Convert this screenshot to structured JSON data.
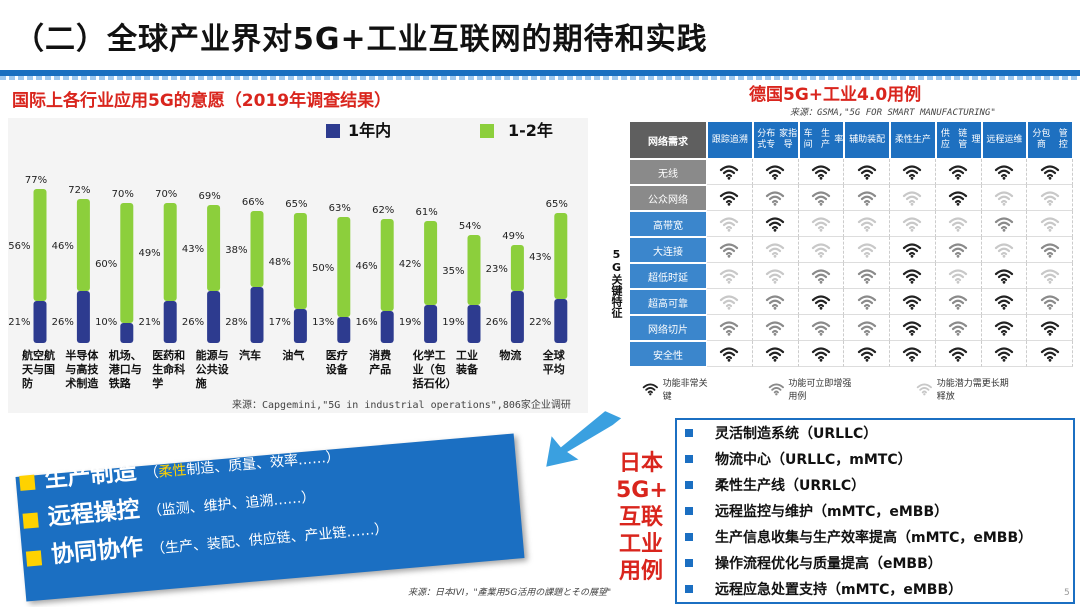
{
  "title": "（二）全球产业界对5G+工业互联网的期待和实践",
  "chart": {
    "title": "国际上各行业应用5G的意愿（2019年调查结果）",
    "legend": [
      {
        "label": "1年内",
        "color": "#2d3b8f"
      },
      {
        "label": "1-2年",
        "color": "#8ccf3c"
      }
    ],
    "source": "来源：Capgemini,\"5G in industrial operations\",806家企业调研"
  },
  "chart_data": {
    "type": "bar",
    "stacked": true,
    "categories": [
      "航空航天与国防",
      "半导体与高技术制造",
      "机场、港口与铁路",
      "医药和生命科学",
      "能源与公共设施",
      "汽车",
      "油气",
      "医疗设备",
      "消费产品",
      "化学工业（包括石化）",
      "工业装备",
      "物流",
      "全球平均"
    ],
    "series": [
      {
        "name": "1年内",
        "values": [
          21,
          26,
          10,
          21,
          26,
          28,
          17,
          13,
          16,
          19,
          19,
          26,
          22
        ]
      },
      {
        "name": "1-2年",
        "values": [
          56,
          46,
          60,
          49,
          43,
          38,
          48,
          50,
          46,
          42,
          35,
          23,
          43
        ]
      }
    ],
    "totals": [
      77,
      72,
      70,
      70,
      69,
      66,
      65,
      63,
      62,
      61,
      54,
      49,
      65
    ],
    "total_labels": [
      "77%",
      "72%",
      "70%",
      "70%",
      "69%",
      "66%",
      "65%",
      "63%",
      "62%",
      "61%",
      "54%",
      "49%",
      "65%"
    ],
    "series1_labels": [
      "21%",
      "26%",
      "10%",
      "21%",
      "26%",
      "28%",
      "17%",
      "13%",
      "16%",
      "19%",
      "19%",
      "26%",
      "22%"
    ],
    "series2_labels": [
      "56%",
      "46%",
      "60%",
      "49%",
      "43%",
      "38%",
      "48%",
      "50%",
      "46%",
      "42%",
      "35%",
      "23%",
      "43%"
    ],
    "category_label_lines": [
      [
        "航空航",
        "天与国",
        "防"
      ],
      [
        "半导体",
        "与高技",
        "术制造"
      ],
      [
        "机场、",
        "港口与",
        "铁路"
      ],
      [
        "医药和",
        "生命科",
        "学"
      ],
      [
        "能源与",
        "公共设",
        "施"
      ],
      [
        "汽车"
      ],
      [
        "油气"
      ],
      [
        "医疗",
        "设备"
      ],
      [
        "消费",
        "产品"
      ],
      [
        "化学工",
        "业（包",
        "括石化）"
      ],
      [
        "工业",
        "装备"
      ],
      [
        "物流"
      ],
      [
        "全球",
        "平均"
      ]
    ]
  },
  "germany": {
    "title": "德国5G+工业4.0用例",
    "source": "来源：GSMA,\"5G FOR SMART MANUFACTURING\"",
    "corner_label": "网络需求",
    "columns": [
      "跟踪追溯",
      "分布式专家指导",
      "车间生产率",
      "辅助装配",
      "柔性生产",
      "供应链管理",
      "远程运维",
      "分包商管控"
    ],
    "column_lines": [
      [
        "跟踪",
        "追溯"
      ],
      [
        "分布式专",
        "家指导"
      ],
      [
        "车间",
        "生产",
        "率"
      ],
      [
        "辅助",
        "装配"
      ],
      [
        "柔性",
        "生产"
      ],
      [
        "供应",
        "链管",
        "理"
      ],
      [
        "远程",
        "运维"
      ],
      [
        "分包商",
        "管控"
      ]
    ],
    "side_label": "5G关键特征",
    "rows": [
      {
        "label": "无线",
        "style": "gray",
        "levels": [
          2,
          2,
          2,
          2,
          2,
          2,
          2,
          2
        ]
      },
      {
        "label": "公众网络",
        "style": "gray",
        "levels": [
          2,
          1,
          1,
          1,
          0,
          2,
          0,
          0
        ]
      },
      {
        "label": "高带宽",
        "style": "blue",
        "levels": [
          0,
          2,
          0,
          0,
          0,
          0,
          1,
          0
        ]
      },
      {
        "label": "大连接",
        "style": "blue",
        "levels": [
          1,
          0,
          0,
          0,
          2,
          1,
          0,
          1
        ]
      },
      {
        "label": "超低时延",
        "style": "blue",
        "levels": [
          0,
          0,
          1,
          1,
          2,
          0,
          2,
          0
        ]
      },
      {
        "label": "超高可靠",
        "style": "blue",
        "levels": [
          0,
          1,
          2,
          1,
          2,
          1,
          2,
          1
        ]
      },
      {
        "label": "网络切片",
        "style": "blue",
        "levels": [
          1,
          1,
          1,
          1,
          2,
          1,
          2,
          2
        ]
      },
      {
        "label": "安全性",
        "style": "blue",
        "levels": [
          2,
          2,
          2,
          2,
          2,
          2,
          2,
          2
        ]
      }
    ],
    "legend": [
      {
        "label": "功能非常关键",
        "icon": "wifi-dark-icon"
      },
      {
        "label": "功能可立即增强用例",
        "icon": "wifi-mid-icon"
      },
      {
        "label": "功能潜力需更长期释放",
        "icon": "wifi-light-icon"
      }
    ],
    "wifi_colors": [
      "#c8c8c8",
      "#8a8a8a",
      "#222222"
    ]
  },
  "banner": {
    "items": [
      {
        "main": "生产制造",
        "sub_highlight": "柔性",
        "sub_prefix": "（",
        "sub_rest": "制造、质量、效率……）"
      },
      {
        "main": "远程操控",
        "sub_highlight": "",
        "sub_prefix": "（",
        "sub_rest": "监测、维护、追溯……）"
      },
      {
        "main": "协同协作",
        "sub_highlight": "",
        "sub_prefix": "（",
        "sub_rest": "生产、装配、供应链、产业链……）"
      }
    ]
  },
  "japan": {
    "label": "日本5G+互联工业用例",
    "label_lines": [
      "日本",
      "5G+",
      "互联",
      "工业",
      "用例"
    ],
    "items": [
      "灵活制造系统（URLLC）",
      "物流中心（URLLC，mMTC）",
      "柔性生产线（URRLC）",
      "远程监控与维护（mMTC，eMBB）",
      "生产信息收集与生产效率提高（mMTC，eMBB）",
      "操作流程优化与质量提高（eMBB）",
      "远程应急处置支持（mMTC，eMBB）"
    ],
    "source": "来源：日本IVI，\"產業用5G活用の課題とその展望\""
  },
  "page_number": "5"
}
